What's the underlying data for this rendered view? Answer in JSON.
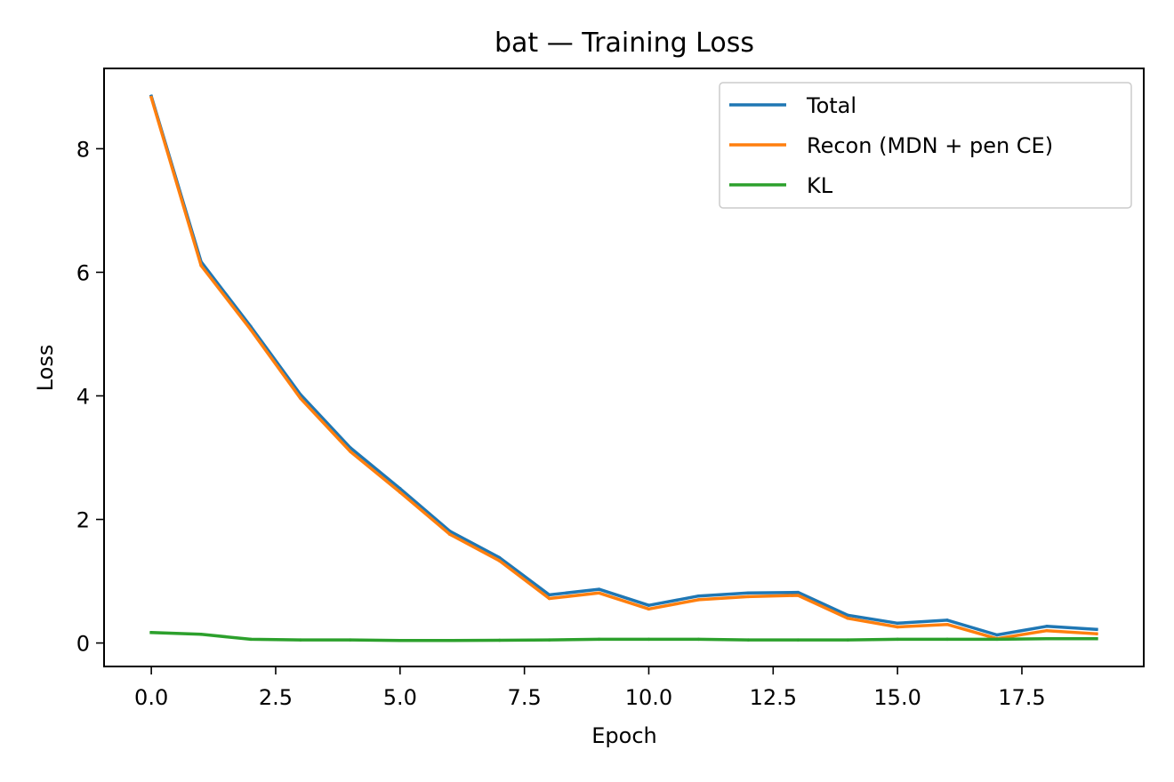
{
  "chart_data": {
    "type": "line",
    "title": "bat — Training Loss",
    "xlabel": "Epoch",
    "ylabel": "Loss",
    "xlim": [
      -0.95,
      19.95
    ],
    "ylim": [
      -0.38,
      9.3
    ],
    "xticks": [
      0,
      2.5,
      5,
      7.5,
      10,
      12.5,
      15,
      17.5
    ],
    "xtick_labels": [
      "0.0",
      "2.5",
      "5.0",
      "7.5",
      "10.0",
      "12.5",
      "15.0",
      "17.5"
    ],
    "yticks": [
      0,
      2,
      4,
      6,
      8
    ],
    "ytick_labels": [
      "0",
      "2",
      "4",
      "6",
      "8"
    ],
    "grid": false,
    "legend_position": "top-right",
    "x": [
      0,
      1,
      2,
      3,
      4,
      5,
      6,
      7,
      8,
      9,
      10,
      11,
      12,
      13,
      14,
      15,
      16,
      17,
      18,
      19
    ],
    "series": [
      {
        "name": "Total",
        "color": "#1f77b4",
        "values": [
          8.85,
          6.17,
          5.12,
          4.02,
          3.16,
          2.5,
          1.81,
          1.38,
          0.78,
          0.87,
          0.61,
          0.76,
          0.81,
          0.82,
          0.45,
          0.32,
          0.37,
          0.13,
          0.27,
          0.22
        ]
      },
      {
        "name": "Recon (MDN + pen CE)",
        "color": "#ff7f0e",
        "values": [
          8.83,
          6.11,
          5.07,
          3.96,
          3.1,
          2.44,
          1.76,
          1.33,
          0.72,
          0.81,
          0.55,
          0.7,
          0.75,
          0.77,
          0.4,
          0.26,
          0.3,
          0.07,
          0.2,
          0.15
        ]
      },
      {
        "name": "KL",
        "color": "#2ca02c",
        "values": [
          0.17,
          0.14,
          0.06,
          0.05,
          0.05,
          0.04,
          0.04,
          0.045,
          0.05,
          0.06,
          0.06,
          0.06,
          0.05,
          0.05,
          0.05,
          0.06,
          0.06,
          0.06,
          0.07,
          0.07
        ]
      }
    ]
  }
}
